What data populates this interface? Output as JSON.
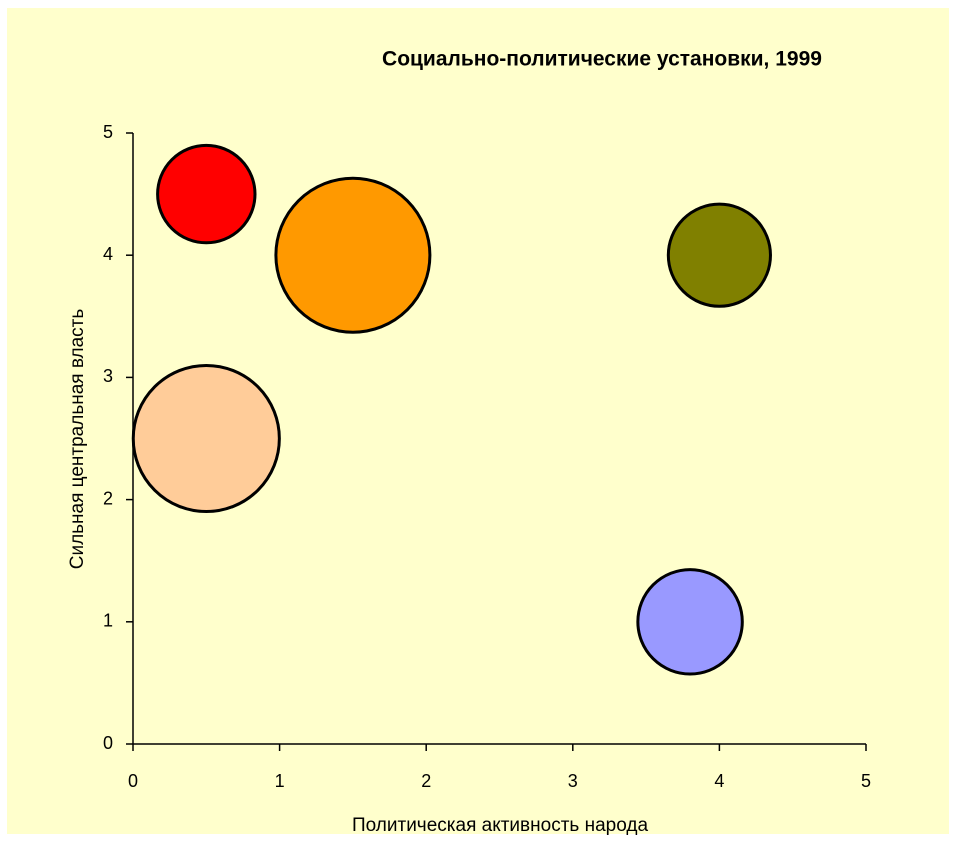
{
  "chart_data": {
    "type": "bubble",
    "title": "Социально-политические установки, 1999",
    "xlabel": "Политическая активность народа",
    "ylabel": "Сильная центральная власть",
    "x": [
      0.5,
      1.5,
      4,
      0.5,
      3.8
    ],
    "values": [
      4.5,
      4,
      4,
      2.5,
      1
    ],
    "sizes": [
      40,
      100,
      44,
      90,
      46
    ],
    "colors": [
      "#ff0000",
      "#ff9900",
      "#808000",
      "#ffcc99",
      "#9999ff"
    ],
    "xlim": [
      0,
      5
    ],
    "ylim": [
      0,
      5
    ],
    "xticks": [
      0,
      1,
      2,
      3,
      4,
      5
    ],
    "yticks": [
      0,
      1,
      2,
      3,
      4,
      5
    ],
    "background": "#ffffcc"
  }
}
